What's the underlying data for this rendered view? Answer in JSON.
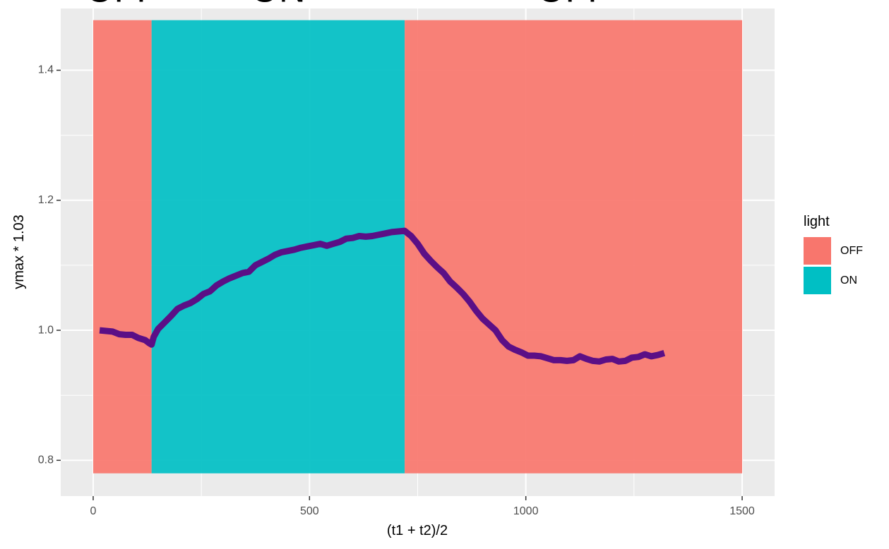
{
  "chart_data": {
    "type": "line",
    "xlabel": "(t1 + t2)/2",
    "ylabel": "ymax * 1.03",
    "xlim": [
      -75,
      1575
    ],
    "ylim": [
      0.745,
      1.495
    ],
    "x_ticks": [
      0,
      500,
      1000,
      1500
    ],
    "x_tick_labels": [
      "0",
      "500",
      "1000",
      "1500"
    ],
    "y_ticks": [
      0.8,
      1.0,
      1.2,
      1.4
    ],
    "y_tick_labels": [
      "0.8",
      "1.0",
      "1.2",
      "1.4"
    ],
    "grid": true,
    "legend": {
      "title": "light",
      "placement": "right",
      "entries": [
        {
          "label": "OFF",
          "color": "#F8766D"
        },
        {
          "label": "ON",
          "color": "#00BFC4"
        }
      ]
    },
    "regions": [
      {
        "light": "OFF",
        "x_start": 0,
        "x_end": 135,
        "y_start": 0.78,
        "y_end": 1.477,
        "color": "#F8766D"
      },
      {
        "light": "ON",
        "x_start": 135,
        "x_end": 720,
        "y_start": 0.78,
        "y_end": 1.477,
        "color": "#00BFC4"
      },
      {
        "light": "OFF",
        "x_start": 720,
        "x_end": 1500,
        "y_start": 0.78,
        "y_end": 1.477,
        "color": "#F8766D"
      }
    ],
    "annotations": [
      {
        "text": "OFF",
        "x": 67,
        "y": 1.52
      },
      {
        "text": "ON",
        "x": 427,
        "y": 1.52
      },
      {
        "text": "OFF",
        "x": 1110,
        "y": 1.52
      }
    ],
    "series": [
      {
        "color": "#5B0F86",
        "x": [
          15,
          30,
          45,
          60,
          75,
          90,
          105,
          120,
          130,
          135,
          140,
          150,
          165,
          180,
          195,
          210,
          225,
          240,
          255,
          270,
          285,
          300,
          315,
          330,
          345,
          360,
          375,
          390,
          405,
          420,
          435,
          450,
          465,
          480,
          495,
          510,
          525,
          540,
          555,
          570,
          585,
          600,
          615,
          630,
          645,
          660,
          675,
          690,
          705,
          720,
          735,
          750,
          765,
          780,
          795,
          810,
          825,
          840,
          855,
          870,
          885,
          900,
          915,
          930,
          945,
          960,
          975,
          990,
          1005,
          1020,
          1035,
          1050,
          1065,
          1080,
          1095,
          1110,
          1125,
          1140,
          1155,
          1170,
          1185,
          1200,
          1215,
          1230,
          1245,
          1260,
          1275,
          1290,
          1305,
          1320
        ],
        "y": [
          1.0,
          0.999,
          0.998,
          0.994,
          0.993,
          0.993,
          0.988,
          0.985,
          0.98,
          0.978,
          0.99,
          1.002,
          1.012,
          1.022,
          1.033,
          1.038,
          1.042,
          1.048,
          1.056,
          1.06,
          1.069,
          1.075,
          1.08,
          1.084,
          1.088,
          1.09,
          1.1,
          1.105,
          1.11,
          1.116,
          1.12,
          1.122,
          1.124,
          1.127,
          1.129,
          1.131,
          1.133,
          1.13,
          1.133,
          1.136,
          1.141,
          1.142,
          1.145,
          1.144,
          1.145,
          1.147,
          1.149,
          1.151,
          1.152,
          1.153,
          1.145,
          1.133,
          1.118,
          1.107,
          1.097,
          1.088,
          1.075,
          1.066,
          1.056,
          1.044,
          1.03,
          1.018,
          1.009,
          1.0,
          0.985,
          0.975,
          0.97,
          0.966,
          0.961,
          0.961,
          0.96,
          0.957,
          0.954,
          0.954,
          0.953,
          0.954,
          0.96,
          0.956,
          0.953,
          0.952,
          0.955,
          0.956,
          0.952,
          0.953,
          0.958,
          0.959,
          0.963,
          0.96,
          0.962,
          0.965
        ]
      }
    ]
  }
}
